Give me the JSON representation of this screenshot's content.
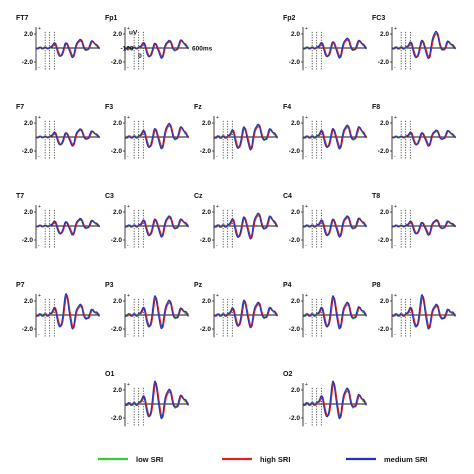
{
  "chart_data": {
    "type": "line",
    "subtype": "ERP waveform grid",
    "x_unit": "ms",
    "x_range": [
      -100,
      600
    ],
    "y_range": [
      -2.5,
      3.0
    ],
    "y_ticks": [
      2.0,
      -2.0
    ],
    "y_tick_labels": [
      "2.0",
      "-2.0"
    ],
    "axis_annotations": {
      "y_unit": "uV",
      "x_start": "-100",
      "zero": "0",
      "x_end": "600ms",
      "plus": "+",
      "minus": "-"
    },
    "series": [
      {
        "name": "low SRI",
        "color": "#33cc33"
      },
      {
        "name": "high SRI",
        "color": "#dd2222"
      },
      {
        "name": "medium SRI",
        "color": "#2233bb"
      }
    ],
    "electrodes": [
      {
        "name": "FT7",
        "peaks": [
          0.7,
          1.2,
          1.6
        ],
        "amp": 0.95
      },
      {
        "name": "Fp1",
        "peaks": [
          0.6,
          1.0,
          1.7
        ],
        "amp": 1.0
      },
      {
        "name": "Fp2",
        "peaks": [
          0.8,
          1.3,
          1.6
        ],
        "amp": 1.0
      },
      {
        "name": "FC3",
        "peaks": [
          0.9,
          2.0,
          1.3
        ],
        "amp": 1.1
      },
      {
        "name": "F7",
        "peaks": [
          0.6,
          1.2,
          1.4
        ],
        "amp": 0.9
      },
      {
        "name": "F3",
        "peaks": [
          0.9,
          1.5,
          1.8
        ],
        "amp": 1.2
      },
      {
        "name": "Fz",
        "peaks": [
          1.0,
          1.3,
          1.3
        ],
        "amp": 1.3
      },
      {
        "name": "F4",
        "peaks": [
          0.9,
          1.3,
          1.8
        ],
        "amp": 1.2
      },
      {
        "name": "F8",
        "peaks": [
          0.6,
          1.0,
          1.5
        ],
        "amp": 0.9
      },
      {
        "name": "T7",
        "peaks": [
          0.6,
          1.1,
          1.3
        ],
        "amp": 0.9
      },
      {
        "name": "C3",
        "peaks": [
          0.8,
          1.2,
          1.3
        ],
        "amp": 1.1
      },
      {
        "name": "Cz",
        "peaks": [
          0.9,
          1.3,
          1.6
        ],
        "amp": 1.3
      },
      {
        "name": "C4",
        "peaks": [
          0.8,
          1.2,
          1.5
        ],
        "amp": 1.1
      },
      {
        "name": "T8",
        "peaks": [
          0.5,
          0.9,
          1.1
        ],
        "amp": 0.9
      },
      {
        "name": "P7",
        "peaks": [
          2.0,
          1.0,
          0.8
        ],
        "amp": 1.4
      },
      {
        "name": "P3",
        "peaks": [
          1.8,
          1.4,
          1.0
        ],
        "amp": 1.4
      },
      {
        "name": "Pz",
        "peaks": [
          1.5,
          1.3,
          1.2
        ],
        "amp": 1.3
      },
      {
        "name": "P4",
        "peaks": [
          1.8,
          1.2,
          1.2
        ],
        "amp": 1.4
      },
      {
        "name": "P8",
        "peaks": [
          1.9,
          1.0,
          0.8
        ],
        "amp": 1.4
      },
      {
        "name": "O1",
        "peaks": [
          2.0,
          1.3,
          1.2
        ],
        "amp": 1.5
      },
      {
        "name": "O2",
        "peaks": [
          2.0,
          1.4,
          1.3
        ],
        "amp": 1.5
      }
    ]
  }
}
